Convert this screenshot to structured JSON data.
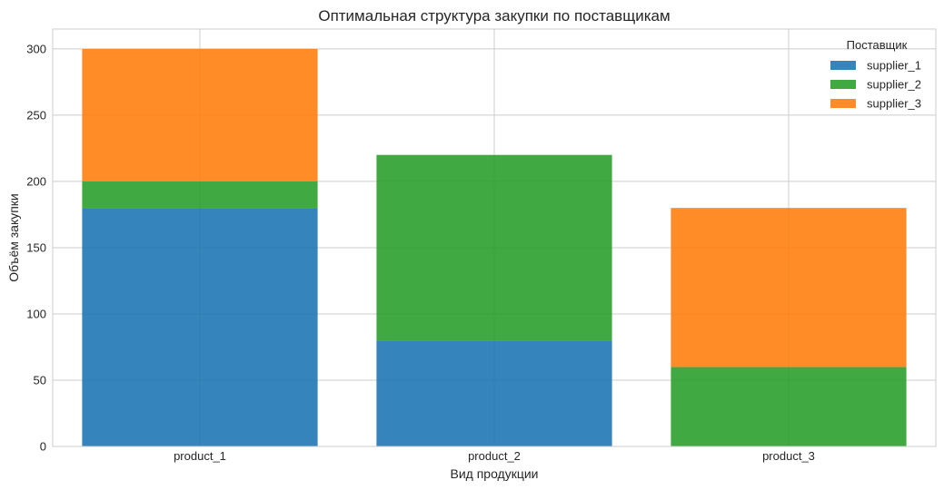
{
  "chart_data": {
    "type": "bar",
    "stacked": true,
    "title": "Оптимальная структура закупки по поставщикам",
    "xlabel": "Вид продукции",
    "ylabel": "Объём закупки",
    "categories": [
      "product_1",
      "product_2",
      "product_3"
    ],
    "series": [
      {
        "name": "supplier_1",
        "values": [
          180,
          80,
          0
        ],
        "color": "#1f77b4"
      },
      {
        "name": "supplier_2",
        "values": [
          20,
          140,
          60
        ],
        "color": "#2ca02c"
      },
      {
        "name": "supplier_3",
        "values": [
          100,
          0,
          120
        ],
        "color": "#ff7f0e"
      }
    ],
    "ylim": [
      0,
      315
    ],
    "yticks": [
      0,
      50,
      100,
      150,
      200,
      250,
      300
    ],
    "grid": true,
    "legend": {
      "title": "Поставщик",
      "position": "top-right"
    }
  }
}
